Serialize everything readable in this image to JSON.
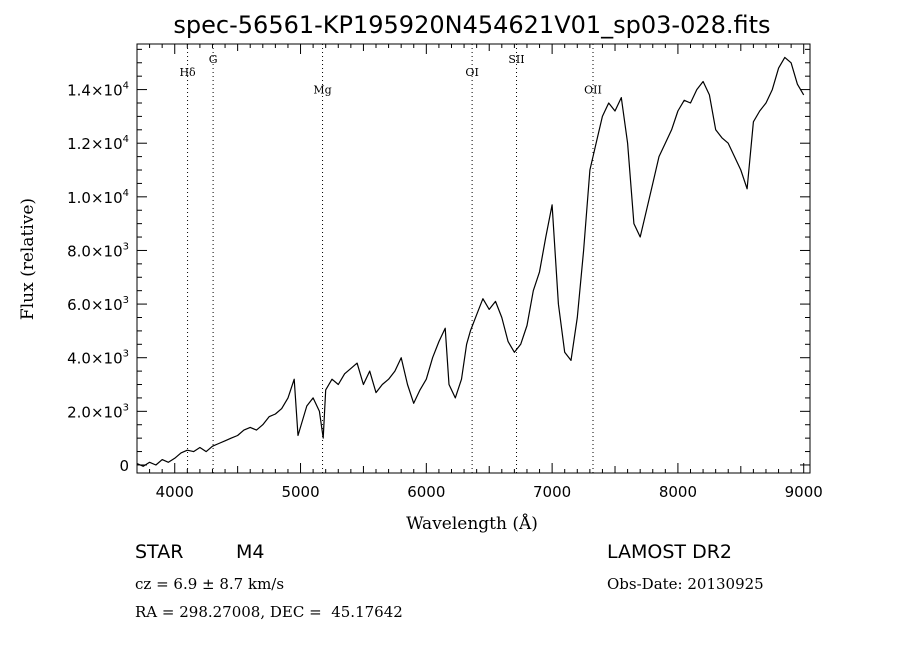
{
  "chart_data": {
    "type": "line",
    "title": "spec-56561-KP195920N454621V01_sp03-028.fits",
    "xlabel": "Wavelength (Å)",
    "ylabel": "Flux (relative)",
    "xlim": [
      3700,
      9050
    ],
    "ylim": [
      -300,
      15700
    ],
    "xticks": [
      4000,
      5000,
      6000,
      7000,
      8000,
      9000
    ],
    "xtick_labels": [
      "4000",
      "5000",
      "6000",
      "7000",
      "8000",
      "9000"
    ],
    "yticks": [
      0,
      2000,
      4000,
      6000,
      8000,
      10000,
      12000,
      14000
    ],
    "ytick_labels": [
      {
        "mant": "0",
        "exp": ""
      },
      {
        "mant": "2.0×10",
        "exp": "3"
      },
      {
        "mant": "4.0×10",
        "exp": "3"
      },
      {
        "mant": "6.0×10",
        "exp": "3"
      },
      {
        "mant": "8.0×10",
        "exp": "3"
      },
      {
        "mant": "1.0×10",
        "exp": "4"
      },
      {
        "mant": "1.2×10",
        "exp": "4"
      },
      {
        "mant": "1.4×10",
        "exp": "4"
      }
    ],
    "grid": false,
    "lines": [
      {
        "label": "Hδ",
        "x": 4102,
        "label_flux": 14500
      },
      {
        "label": "G",
        "x": 4305,
        "label_flux": 15000
      },
      {
        "label": "Mg",
        "x": 5175,
        "label_flux": 13850
      },
      {
        "label": "OI",
        "x": 6364,
        "label_flux": 14500
      },
      {
        "label": "SII",
        "x": 6717,
        "label_flux": 15000
      },
      {
        "label": "OII",
        "x": 7325,
        "label_flux": 13850
      }
    ],
    "series": [
      {
        "points": [
          [
            3700,
            50
          ],
          [
            3750,
            -50
          ],
          [
            3800,
            100
          ],
          [
            3850,
            0
          ],
          [
            3900,
            200
          ],
          [
            3950,
            100
          ],
          [
            4000,
            250
          ],
          [
            4050,
            450
          ],
          [
            4100,
            550
          ],
          [
            4150,
            500
          ],
          [
            4200,
            650
          ],
          [
            4250,
            500
          ],
          [
            4300,
            700
          ],
          [
            4350,
            800
          ],
          [
            4400,
            900
          ],
          [
            4450,
            1000
          ],
          [
            4500,
            1100
          ],
          [
            4550,
            1300
          ],
          [
            4600,
            1400
          ],
          [
            4650,
            1300
          ],
          [
            4700,
            1500
          ],
          [
            4750,
            1800
          ],
          [
            4800,
            1900
          ],
          [
            4850,
            2100
          ],
          [
            4900,
            2500
          ],
          [
            4950,
            3200
          ],
          [
            4980,
            1100
          ],
          [
            5050,
            2200
          ],
          [
            5100,
            2500
          ],
          [
            5150,
            2000
          ],
          [
            5180,
            1000
          ],
          [
            5200,
            2800
          ],
          [
            5250,
            3200
          ],
          [
            5300,
            3000
          ],
          [
            5350,
            3400
          ],
          [
            5400,
            3600
          ],
          [
            5450,
            3800
          ],
          [
            5500,
            3000
          ],
          [
            5550,
            3500
          ],
          [
            5600,
            2700
          ],
          [
            5650,
            3000
          ],
          [
            5700,
            3200
          ],
          [
            5750,
            3500
          ],
          [
            5800,
            4000
          ],
          [
            5850,
            3000
          ],
          [
            5900,
            2300
          ],
          [
            5950,
            2800
          ],
          [
            6000,
            3200
          ],
          [
            6050,
            4000
          ],
          [
            6100,
            4600
          ],
          [
            6150,
            5100
          ],
          [
            6180,
            3000
          ],
          [
            6230,
            2500
          ],
          [
            6280,
            3200
          ],
          [
            6320,
            4500
          ],
          [
            6350,
            5000
          ],
          [
            6400,
            5600
          ],
          [
            6450,
            6200
          ],
          [
            6500,
            5800
          ],
          [
            6550,
            6100
          ],
          [
            6600,
            5500
          ],
          [
            6650,
            4600
          ],
          [
            6700,
            4200
          ],
          [
            6750,
            4500
          ],
          [
            6800,
            5200
          ],
          [
            6850,
            6500
          ],
          [
            6900,
            7200
          ],
          [
            6950,
            8500
          ],
          [
            7000,
            9700
          ],
          [
            7050,
            6000
          ],
          [
            7100,
            4200
          ],
          [
            7150,
            3900
          ],
          [
            7200,
            5500
          ],
          [
            7250,
            8000
          ],
          [
            7300,
            11000
          ],
          [
            7350,
            12000
          ],
          [
            7400,
            13000
          ],
          [
            7450,
            13500
          ],
          [
            7500,
            13200
          ],
          [
            7550,
            13700
          ],
          [
            7600,
            12000
          ],
          [
            7650,
            9000
          ],
          [
            7700,
            8500
          ],
          [
            7750,
            9500
          ],
          [
            7800,
            10500
          ],
          [
            7850,
            11500
          ],
          [
            7900,
            12000
          ],
          [
            7950,
            12500
          ],
          [
            8000,
            13200
          ],
          [
            8050,
            13600
          ],
          [
            8100,
            13500
          ],
          [
            8150,
            14000
          ],
          [
            8200,
            14300
          ],
          [
            8250,
            13800
          ],
          [
            8300,
            12500
          ],
          [
            8350,
            12200
          ],
          [
            8400,
            12000
          ],
          [
            8450,
            11500
          ],
          [
            8500,
            11000
          ],
          [
            8550,
            10300
          ],
          [
            8600,
            12800
          ],
          [
            8650,
            13200
          ],
          [
            8700,
            13500
          ],
          [
            8750,
            14000
          ],
          [
            8800,
            14800
          ],
          [
            8850,
            15200
          ],
          [
            8900,
            15000
          ],
          [
            8950,
            14200
          ],
          [
            9000,
            13800
          ]
        ]
      }
    ]
  },
  "footer": {
    "object_class": "STAR",
    "subclass": "M4",
    "survey": "LAMOST DR2",
    "cz": "cz = 6.9 ± 8.7 km/s",
    "obs_date": "Obs-Date: 20130925",
    "coords": "RA = 298.27008, DEC =  45.17642"
  }
}
